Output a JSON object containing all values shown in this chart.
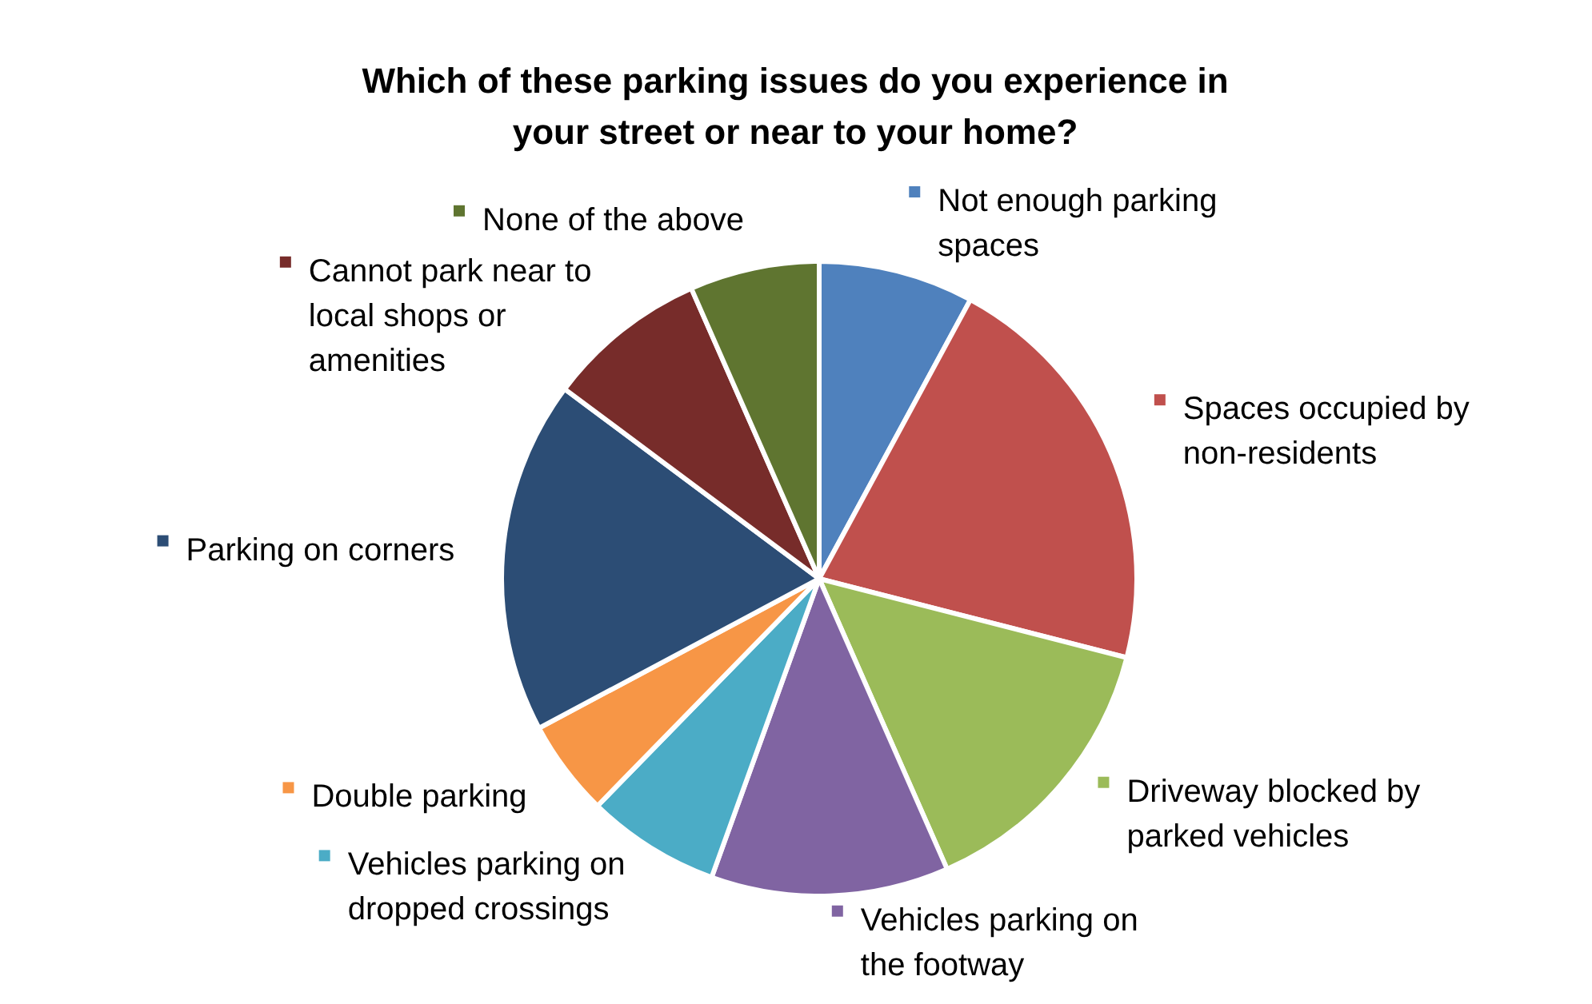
{
  "chart_data": {
    "type": "pie",
    "title": "Which of these parking issues do you experience in your street or near to your home?",
    "categories": [
      "Not enough parking spaces",
      "Spaces occupied by non-residents",
      "Driveway blocked by parked vehicles",
      "Vehicles parking on the footway",
      "Vehicles parking on dropped crossings",
      "Double parking",
      "Parking on corners",
      "Cannot park near to local shops or amenities",
      "None of the above"
    ],
    "values": [
      7.9,
      21.1,
      14.4,
      12.1,
      6.8,
      4.9,
      18.0,
      8.2,
      6.6
    ],
    "colors": [
      "#4f81bd",
      "#c0504d",
      "#9bbb59",
      "#8064a2",
      "#4bacc6",
      "#f79646",
      "#2c4d75",
      "#772c2a",
      "#5f7530"
    ],
    "legend": "right"
  }
}
